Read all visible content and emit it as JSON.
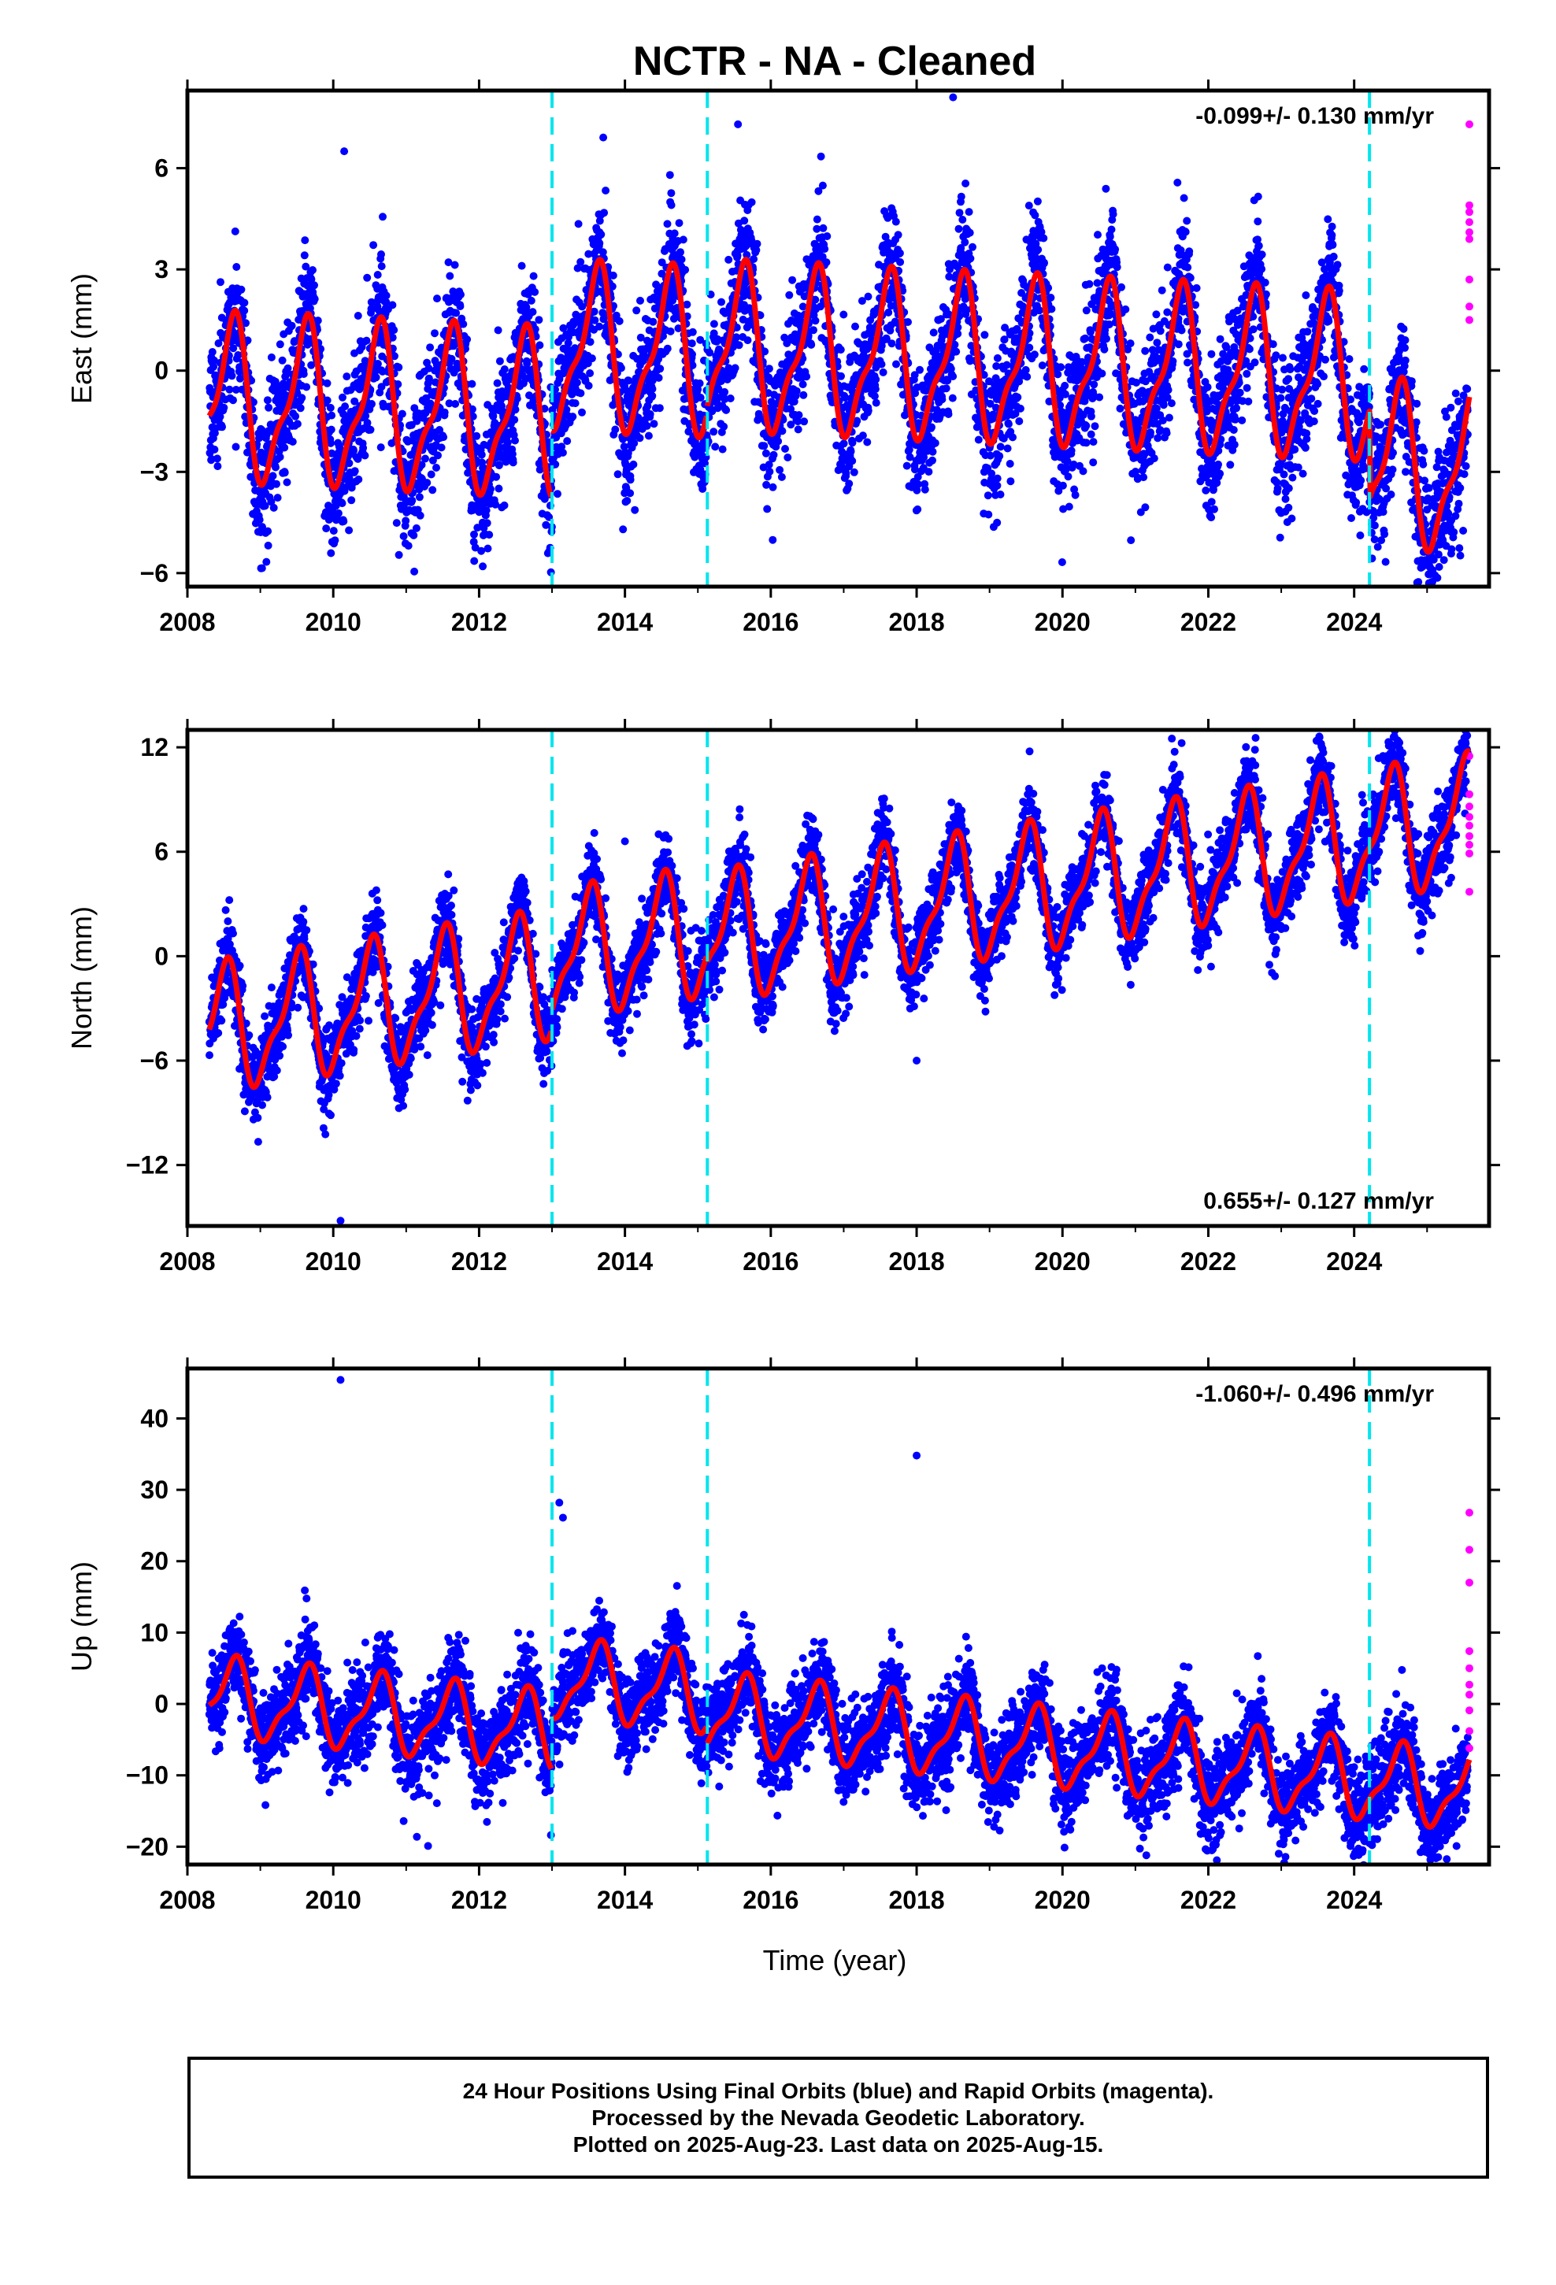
{
  "title": "NCTR  - NA - Cleaned",
  "xlabel": "Time (year)",
  "colors": {
    "final": "#0000ff",
    "rapid": "#ff00ff",
    "model": "#ff0000",
    "offset": "#00e5ee"
  },
  "footer": {
    "line1": "24 Hour Positions Using Final Orbits (blue) and Rapid Orbits (magenta).",
    "line2": "Processed by the Nevada Geodetic Laboratory.",
    "line3": "Plotted on 2025-Aug-23. Last data on 2025-Aug-15."
  },
  "chart_data": [
    {
      "type": "scatter",
      "ylabel": "East (mm)",
      "rate": "-0.099+/- 0.130 mm/yr",
      "rate_position": "top-right",
      "xlim": [
        2008.0,
        2025.85
      ],
      "ylim": [
        -6.4,
        8.3
      ],
      "xticks": [
        2008,
        2010,
        2012,
        2014,
        2016,
        2018,
        2020,
        2022,
        2024
      ],
      "yticks": [
        -6,
        -3,
        0,
        3,
        6
      ],
      "offsets": [
        2013.0,
        2015.13,
        2024.21
      ],
      "model": {
        "seg_starts": [
          2008.3,
          2013.0,
          2015.13
        ],
        "bases": [
          -0.9,
          1.1,
          1.3
        ],
        "trend": -0.099,
        "amp": 2.2,
        "phase_peak": 0.6,
        "noise": 1.0,
        "final_jump": -2.6
      },
      "rapid_points": {
        "x": 2025.58,
        "values": [
          7.3,
          4.9,
          4.7,
          4.4,
          4.1,
          3.9,
          2.7,
          1.9,
          1.5
        ]
      },
      "outliers": [
        [
          2010.15,
          6.5
        ],
        [
          2018.5,
          8.1
        ],
        [
          2012.05,
          -5.8
        ],
        [
          2015.55,
          7.3
        ],
        [
          2015.95,
          -4.1
        ]
      ]
    },
    {
      "type": "scatter",
      "ylabel": "North (mm)",
      "rate": "0.655+/- 0.127 mm/yr",
      "rate_position": "bottom-right",
      "xlim": [
        2008.0,
        2025.85
      ],
      "ylim": [
        -15.5,
        13.0
      ],
      "xticks": [
        2008,
        2010,
        2012,
        2014,
        2016,
        2018,
        2020,
        2022,
        2024
      ],
      "yticks": [
        -12,
        -6,
        0,
        6,
        12
      ],
      "offsets": [
        2013.0,
        2015.13,
        2024.21
      ],
      "model": {
        "seg_starts": [
          2008.3,
          2013.0,
          2015.13
        ],
        "bases": [
          -4.3,
          -3.2,
          -3.6
        ],
        "trend": 0.655,
        "amp": 3.3,
        "phase_peak": 0.5,
        "noise": 1.2,
        "final_jump": 0
      },
      "rapid_points": {
        "x": 2025.58,
        "values": [
          11.5,
          9.3,
          8.6,
          8.0,
          7.5,
          6.9,
          6.4,
          5.9,
          3.7
        ]
      },
      "outliers": [
        [
          2010.1,
          -15.2
        ],
        [
          2021.5,
          12.5
        ],
        [
          2014.0,
          6.6
        ],
        [
          2018.0,
          -6.0
        ]
      ]
    },
    {
      "type": "scatter",
      "ylabel": "Up (mm)",
      "rate": "-1.060+/- 0.496 mm/yr",
      "rate_position": "top-right",
      "xlim": [
        2008.0,
        2025.85
      ],
      "ylim": [
        -22.5,
        47.0
      ],
      "xticks": [
        2008,
        2010,
        2012,
        2014,
        2016,
        2018,
        2020,
        2022,
        2024
      ],
      "yticks": [
        -20,
        -10,
        0,
        10,
        20,
        30,
        40
      ],
      "offsets": [
        2013.0,
        2015.13,
        2024.21
      ],
      "model": {
        "seg_starts": [
          2008.3,
          2013.0,
          2015.13
        ],
        "bases": [
          1.0,
          8.5,
          6.0
        ],
        "trend": -1.06,
        "amp": 5.0,
        "phase_peak": 0.62,
        "noise": 3.2,
        "final_jump": 0
      },
      "rapid_points": {
        "x": 2025.58,
        "values": [
          26.8,
          21.6,
          17.0,
          7.4,
          5.0,
          2.7,
          1.3,
          -0.9,
          -3.8,
          -6.2
        ]
      },
      "outliers": [
        [
          2010.1,
          45.4
        ],
        [
          2018.0,
          34.8
        ],
        [
          2013.1,
          28.2
        ],
        [
          2013.15,
          26.1
        ],
        [
          2021.15,
          -21.2
        ],
        [
          2011.3,
          -19.9
        ]
      ]
    }
  ]
}
